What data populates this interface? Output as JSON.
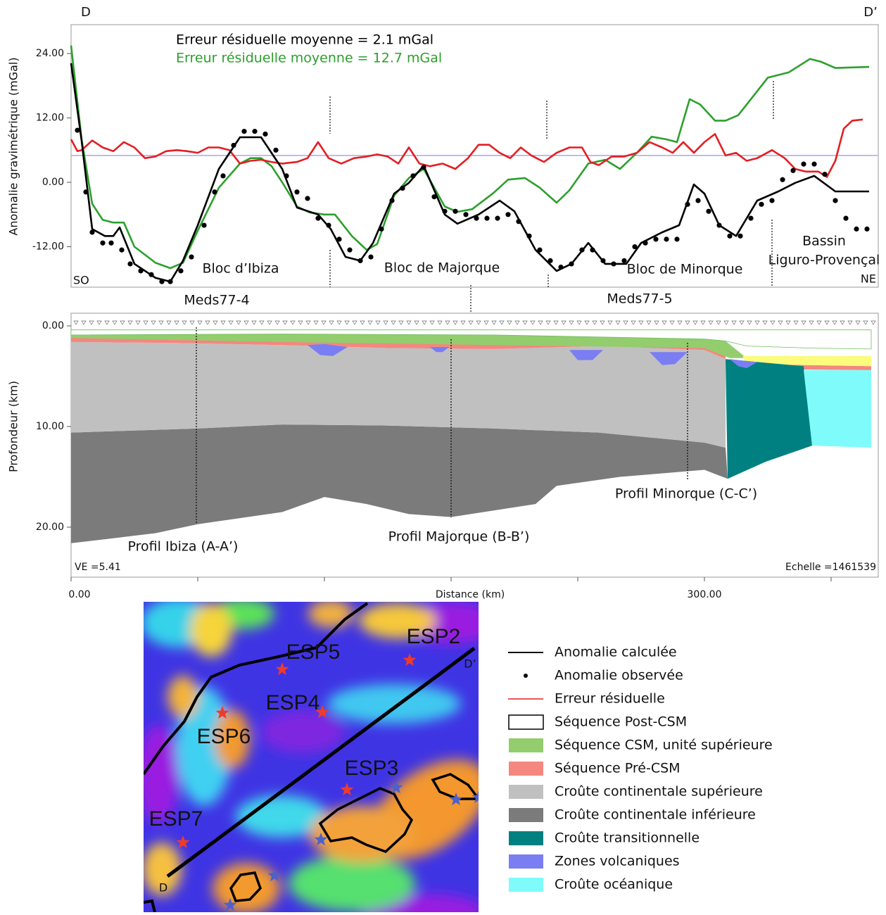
{
  "chart_data": [
    {
      "type": "line",
      "corner_labels": [
        "D",
        "D’",
        "SO",
        "NE"
      ],
      "fit_labels": [
        "Erreur résiduelle moyenne = 2.1 mGal",
        "Erreur résiduelle moyenne = 12.7 mGal"
      ],
      "region_labels": [
        "Bloc d’Ibiza",
        "Bloc de Majorque",
        "Bloc de Minorque"
      ],
      "basin_label": [
        "Bassin",
        "Liguro-Provençal"
      ],
      "profile_labels": [
        "Meds77-4",
        "Meds77-5"
      ],
      "y_label": "Anomalie gravimétrique (mGal)",
      "xlim": [
        0,
        382
      ],
      "ylim": [
        -19.6,
        29.2
      ],
      "yticks": [
        {
          "value": 24,
          "label": "24.00"
        },
        {
          "value": 12,
          "label": "12.00"
        },
        {
          "value": 0,
          "label": "0.00"
        },
        {
          "value": -12,
          "label": "-12.00"
        }
      ],
      "reference_line": 5,
      "reference_color": "#a8a8ec",
      "series": [
        {
          "style": "line",
          "color": "#000000",
          "x": [
            0,
            5,
            10,
            16,
            20,
            23,
            30,
            40,
            47,
            53,
            60,
            70,
            80,
            90,
            100,
            107,
            117,
            123,
            130,
            137,
            143,
            153,
            160,
            167,
            177,
            183,
            193,
            203,
            210,
            220,
            230,
            237,
            245,
            253,
            263,
            270,
            280,
            288,
            295,
            300,
            307,
            315,
            325,
            335,
            343,
            352,
            362,
            378
          ],
          "values": [
            22.2,
            7.7,
            -8.7,
            -10,
            -10,
            -8.4,
            -15.2,
            -17.8,
            -18.5,
            -14.6,
            -8,
            2.5,
            8.4,
            8.4,
            2.5,
            -4.7,
            -6,
            -8.7,
            -13.9,
            -14.6,
            -11.3,
            -2.1,
            -0.1,
            3.1,
            -6,
            -7.7,
            -6,
            -3.4,
            -5.4,
            -12.6,
            -16.5,
            -15.2,
            -11.3,
            -15.2,
            -15.2,
            -11.3,
            -9.3,
            -8,
            -0.4,
            -2.1,
            -8,
            -10,
            -3.4,
            -1.7,
            -0.1,
            1.2,
            -1.7,
            -1.7
          ]
        },
        {
          "style": "dots",
          "color": "#000000",
          "x": [
            3,
            7,
            10,
            15,
            19,
            24,
            28,
            33,
            38,
            43,
            47,
            52,
            57,
            63,
            68,
            72,
            77,
            82,
            87,
            92,
            97,
            102,
            107,
            112,
            117,
            122,
            127,
            132,
            137,
            142,
            147,
            152,
            157,
            162,
            167,
            172,
            177,
            182,
            187,
            192,
            197,
            202,
            207,
            212,
            217,
            222,
            227,
            232,
            237,
            242,
            247,
            252,
            257,
            262,
            267,
            272,
            277,
            282,
            287,
            292,
            297,
            302,
            307,
            312,
            317,
            322,
            327,
            332,
            337,
            342,
            347,
            352,
            357,
            362,
            367,
            372,
            377
          ],
          "values": [
            9.7,
            -1.8,
            -9.3,
            -11.3,
            -11.3,
            -12.6,
            -15.2,
            -16.5,
            -17.2,
            -18.5,
            -18.5,
            -16.5,
            -13.9,
            -8,
            -1.8,
            1.2,
            6.9,
            9.5,
            9.5,
            9,
            6,
            1.2,
            -1.8,
            -3,
            -6.7,
            -8,
            -10.6,
            -12.6,
            -14.6,
            -13.9,
            -8.7,
            -3.4,
            -1.1,
            1.2,
            2.8,
            -2.7,
            -5.4,
            -5.4,
            -6,
            -6.7,
            -6.7,
            -6.7,
            -6,
            -7.3,
            -10,
            -12.6,
            -14.6,
            -15.8,
            -15.2,
            -12.6,
            -12.6,
            -14.6,
            -15.2,
            -14.6,
            -12,
            -11.3,
            -10.6,
            -10.6,
            -10.6,
            -4.1,
            -3.4,
            -5.4,
            -8,
            -10,
            -10,
            -6.7,
            -4.1,
            -3.4,
            0.5,
            2.2,
            3.4,
            3.4,
            1.5,
            -3.4,
            -6.7,
            -8.7,
            -8.7
          ]
        },
        {
          "style": "line",
          "color": "#e31e24",
          "x": [
            0,
            3,
            5,
            10,
            15,
            20,
            25,
            30,
            35,
            40,
            45,
            50,
            55,
            60,
            65,
            70,
            75,
            80,
            85,
            90,
            95,
            100,
            107,
            112,
            117,
            122,
            128,
            134,
            140,
            145,
            150,
            155,
            160,
            165,
            170,
            176,
            182,
            188,
            193,
            198,
            203,
            208,
            213,
            218,
            224,
            230,
            236,
            242,
            246,
            250,
            256,
            262,
            268,
            274,
            280,
            285,
            290,
            295,
            300,
            305,
            310,
            315,
            320,
            325,
            332,
            338,
            343,
            348,
            354,
            358,
            362,
            366,
            370,
            375
          ],
          "values": [
            8,
            5.8,
            6,
            7.8,
            6.5,
            5.8,
            7.5,
            6.5,
            4.5,
            4.8,
            5.8,
            6,
            5.8,
            5.5,
            6.5,
            6.5,
            6,
            3.5,
            4,
            4.2,
            3.8,
            3.5,
            3.8,
            4.5,
            7.5,
            4.5,
            3.5,
            4.5,
            4.8,
            5.2,
            4.8,
            3.5,
            6.5,
            3.5,
            3,
            3.5,
            2.5,
            4.5,
            7,
            7,
            5.5,
            4.5,
            6.5,
            5,
            3.8,
            5.5,
            6.5,
            6.5,
            3.8,
            3.2,
            4.8,
            4.8,
            5.5,
            7.5,
            6.5,
            5.5,
            7.5,
            5.5,
            7.5,
            9,
            5,
            5.5,
            4,
            4.5,
            6,
            4.5,
            2.5,
            2,
            2,
            1,
            4,
            10,
            11.5,
            11.7
          ]
        },
        {
          "style": "line",
          "color": "#2ca02c",
          "x": [
            0,
            5,
            10,
            15,
            20,
            25,
            30,
            40,
            47,
            53,
            60,
            70,
            80,
            85,
            90,
            95,
            100,
            107,
            113,
            120,
            125,
            133,
            140,
            145,
            153,
            160,
            167,
            177,
            183,
            190,
            200,
            207,
            215,
            222,
            230,
            236,
            245,
            253,
            260,
            268,
            275,
            282,
            287,
            293,
            298,
            305,
            310,
            316,
            322,
            330,
            340,
            350,
            355,
            362,
            378
          ],
          "values": [
            25.5,
            8,
            -4,
            -7,
            -7.5,
            -7.5,
            -12,
            -15,
            -16,
            -15,
            -9,
            -1,
            3.5,
            4.5,
            4.5,
            3,
            0,
            -4.5,
            -5.6,
            -6,
            -6,
            -10,
            -12.6,
            -11.5,
            -2.5,
            0.8,
            2.5,
            -4.5,
            -5.5,
            -5,
            -2,
            0.5,
            0.8,
            -1,
            -3.8,
            -1.5,
            3.5,
            4.2,
            2.5,
            5.5,
            8.5,
            8,
            7.5,
            15.5,
            14.5,
            11.5,
            11.5,
            12.5,
            15.5,
            19.5,
            20.5,
            23,
            22.5,
            21.3,
            21.5
          ]
        }
      ]
    },
    {
      "type": "section",
      "y_label": "Profondeur (km)",
      "x_label": "Distance (km)",
      "xlim": [
        0,
        382
      ],
      "ylim": [
        -1.26,
        24.97
      ],
      "yticks": [
        {
          "value": 0,
          "label": "0.00"
        },
        {
          "value": 10,
          "label": "10.00"
        },
        {
          "value": 20,
          "label": "20.00"
        }
      ],
      "xticks": [
        {
          "value": 0,
          "label": "0.00"
        },
        {
          "value": 300,
          "label": "300.00"
        }
      ],
      "xminorticks": [
        60,
        120,
        180,
        240,
        360
      ],
      "profile_labels": [
        "Profil Ibiza (A-A’)",
        "Profil Majorque (B-B’)",
        "Profil Minorque (C-C’)"
      ],
      "notes": [
        "VE =5.41",
        "Echelle =1461539"
      ],
      "layers": [
        {
          "color": "#7b7b7b",
          "polygons": [
            {
              "x": [
                0,
                60,
                100,
                150,
                200,
                250,
                300,
                310,
                311,
                300,
                260,
                230,
                220,
                180,
                160,
                140,
                120,
                100,
                60,
                40,
                20,
                0
              ],
              "depth": [
                10.6,
                10.2,
                9.8,
                9.9,
                10.2,
                10.6,
                11.6,
                12.1,
                15.2,
                14.3,
                15.0,
                15.9,
                17.7,
                19.0,
                18.7,
                17.7,
                17.0,
                18.5,
                19.7,
                20.6,
                21.1,
                21.6
              ]
            }
          ]
        },
        {
          "color": "#c0c0c0",
          "polygons": [
            {
              "x": [
                0,
                50,
                100,
                150,
                200,
                250,
                300,
                310,
                310,
                300,
                250,
                200,
                150,
                100,
                60,
                0
              ],
              "depth": [
                1.6,
                1.7,
                1.9,
                2.2,
                2.3,
                2.0,
                2.4,
                3.3,
                12.1,
                11.6,
                10.6,
                10.2,
                9.9,
                9.8,
                10.2,
                10.6
              ]
            }
          ]
        },
        {
          "color": "#f4877f",
          "polygons": [
            {
              "x": [
                0,
                50,
                100,
                150,
                200,
                250,
                300,
                310,
                310,
                300,
                250,
                200,
                150,
                100,
                50,
                0
              ],
              "depth": [
                1.0,
                1.4,
                1.4,
                1.5,
                1.7,
                1.8,
                1.9,
                2.8,
                3.3,
                2.4,
                2.0,
                2.3,
                2.2,
                1.9,
                1.7,
                1.6
              ]
            },
            {
              "x": [
                320,
                379,
                379,
                318
              ],
              "depth": [
                3.8,
                4.0,
                4.4,
                4.3
              ]
            }
          ]
        },
        {
          "color": "#93cd6e",
          "polygons": [
            {
              "x": [
                0,
                100,
                200,
                300,
                310,
                320,
                312,
                300,
                200,
                100,
                0
              ],
              "depth": [
                0.9,
                0.8,
                0.9,
                1.3,
                1.5,
                3.2,
                3.2,
                2.2,
                1.9,
                1.6,
                1.2
              ]
            }
          ]
        },
        {
          "color": "#ffffff",
          "polygons": [
            {
              "x": [
                0,
                379,
                379,
                350,
                320,
                310,
                300,
                200,
                100,
                0
              ],
              "depth": [
                0.4,
                0.4,
                2.3,
                2.2,
                2.0,
                1.5,
                1.3,
                0.9,
                0.8,
                0.9
              ]
            }
          ]
        },
        {
          "color": "#fbfb7c",
          "polygons": [
            {
              "x": [
                318,
                379,
                379,
                320
              ],
              "depth": [
                3.0,
                3.0,
                4.0,
                3.8
              ]
            }
          ]
        },
        {
          "color": "#008080",
          "polygons": [
            {
              "x": [
                310,
                347,
                351,
                329,
                311
              ],
              "depth": [
                3.3,
                4.0,
                11.9,
                13.5,
                15.2
              ]
            }
          ]
        },
        {
          "color": "#80fbfb",
          "polygons": [
            {
              "x": [
                347,
                379,
                379,
                351
              ],
              "depth": [
                4.4,
                4.4,
                12.1,
                11.9
              ]
            }
          ]
        },
        {
          "color": "#7a7ef2",
          "polygons": [
            {
              "x": [
                112,
                120,
                127,
                131,
                124,
                118
              ],
              "depth": [
                1.9,
                1.8,
                2.0,
                2.1,
                3.0,
                2.9
              ]
            },
            {
              "x": [
                170,
                179,
                176,
                173
              ],
              "depth": [
                2.1,
                2.1,
                2.6,
                2.6
              ]
            },
            {
              "x": [
                236,
                252,
                247,
                240
              ],
              "depth": [
                2.4,
                2.4,
                3.4,
                3.4
              ]
            },
            {
              "x": [
                274,
                292,
                286,
                280
              ],
              "depth": [
                2.6,
                2.6,
                3.8,
                3.9
              ]
            },
            {
              "x": [
                312,
                325,
                320,
                316
              ],
              "depth": [
                3.3,
                3.6,
                4.2,
                4.0
              ]
            }
          ]
        }
      ]
    }
  ],
  "legend": [
    {
      "label": "Anomalie calculée",
      "kind": "line",
      "color": "#000000"
    },
    {
      "label": "Anomalie observée",
      "kind": "dot",
      "color": "#000000"
    },
    {
      "label": "Erreur résiduelle",
      "kind": "line",
      "color": "#e31e24"
    },
    {
      "label": "Séquence Post-CSM",
      "kind": "box",
      "color": "#ffffff"
    },
    {
      "label": "Séquence CSM, unité supérieure",
      "kind": "box",
      "color": "#93cd6e"
    },
    {
      "label": "Séquence Pré-CSM",
      "kind": "box",
      "color": "#f4877f"
    },
    {
      "label": "Croûte continentale supérieure",
      "kind": "box",
      "color": "#c0c0c0"
    },
    {
      "label": "Croûte continentale inférieure",
      "kind": "box",
      "color": "#7b7b7b"
    },
    {
      "label": "Croûte transitionnelle",
      "kind": "box",
      "color": "#008080"
    },
    {
      "label": "Zones volcaniques",
      "kind": "box",
      "color": "#7a7ef2"
    },
    {
      "label": "Croûte océanique",
      "kind": "box",
      "color": "#80fbfb"
    }
  ],
  "map": {
    "station_labels": [
      "ESP2",
      "ESP5",
      "ESP4",
      "ESP6",
      "ESP3",
      "ESP7"
    ],
    "line_labels": [
      "D",
      "D’"
    ]
  }
}
